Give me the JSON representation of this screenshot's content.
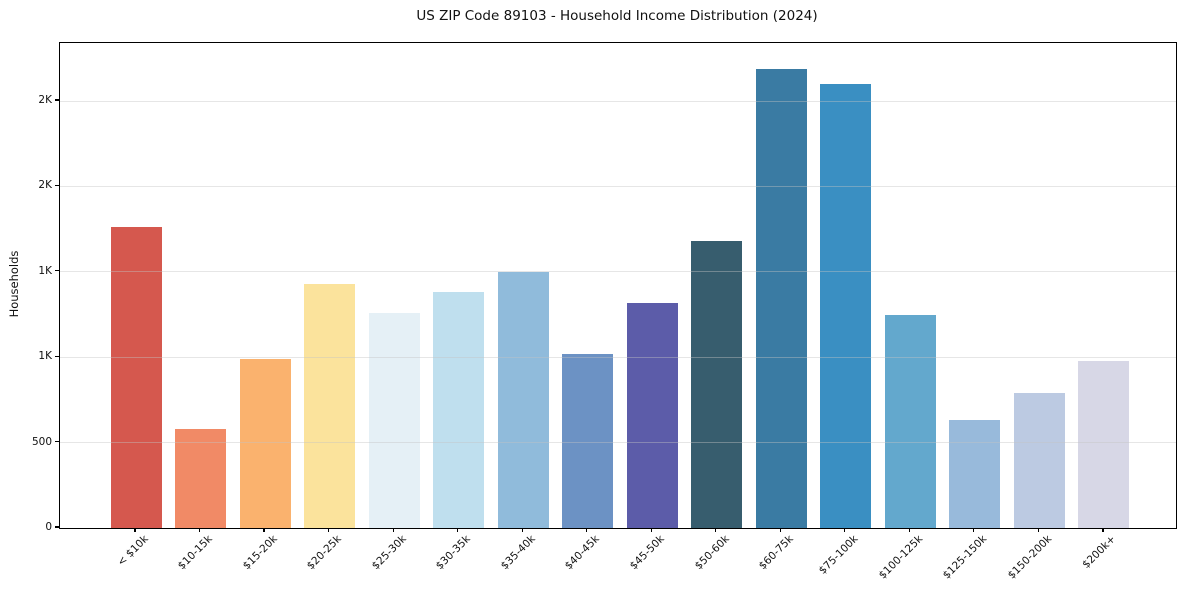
{
  "page_title": "US ZIP Code 89103 - Household Income Distribution (2024)",
  "chart_data": {
    "type": "bar",
    "title": "US ZIP Code 89103 - Household Income Distribution (2024)",
    "xlabel": "",
    "ylabel": "Households",
    "legend": "none",
    "grid": "horizontal gridlines at each y tick, drawn over the bars",
    "ylim": [
      0,
      2840
    ],
    "yticks": [
      {
        "value": 0,
        "label": "0"
      },
      {
        "value": 500,
        "label": "500"
      },
      {
        "value": 1000,
        "label": "1K"
      },
      {
        "value": 1500,
        "label": "1K"
      },
      {
        "value": 2000,
        "label": "2K"
      },
      {
        "value": 2500,
        "label": "2K"
      }
    ],
    "categories": [
      "< $10k",
      "$10-15k",
      "$15-20k",
      "$20-25k",
      "$25-30k",
      "$30-35k",
      "$35-40k",
      "$40-45k",
      "$45-50k",
      "$50-60k",
      "$60-75k",
      "$75-100k",
      "$100-125k",
      "$125-150k",
      "$150-200k",
      "$200k+"
    ],
    "values": [
      1765,
      580,
      990,
      1430,
      1260,
      1380,
      1500,
      1020,
      1320,
      1680,
      2690,
      2600,
      1250,
      630,
      790,
      980
    ],
    "bar_colors": [
      "#d5584e",
      "#f18a66",
      "#fab26e",
      "#fbe39c",
      "#e5f0f6",
      "#bfdfee",
      "#90bbdb",
      "#6c92c4",
      "#5c5ca9",
      "#375d6e",
      "#3a7ba3",
      "#3a8fc2",
      "#63a8cd",
      "#98badb",
      "#bccae2",
      "#d7d7e6"
    ],
    "x_tick_rotation_deg": 45,
    "spine_color": "#000000",
    "background_color": "#ffffff"
  }
}
